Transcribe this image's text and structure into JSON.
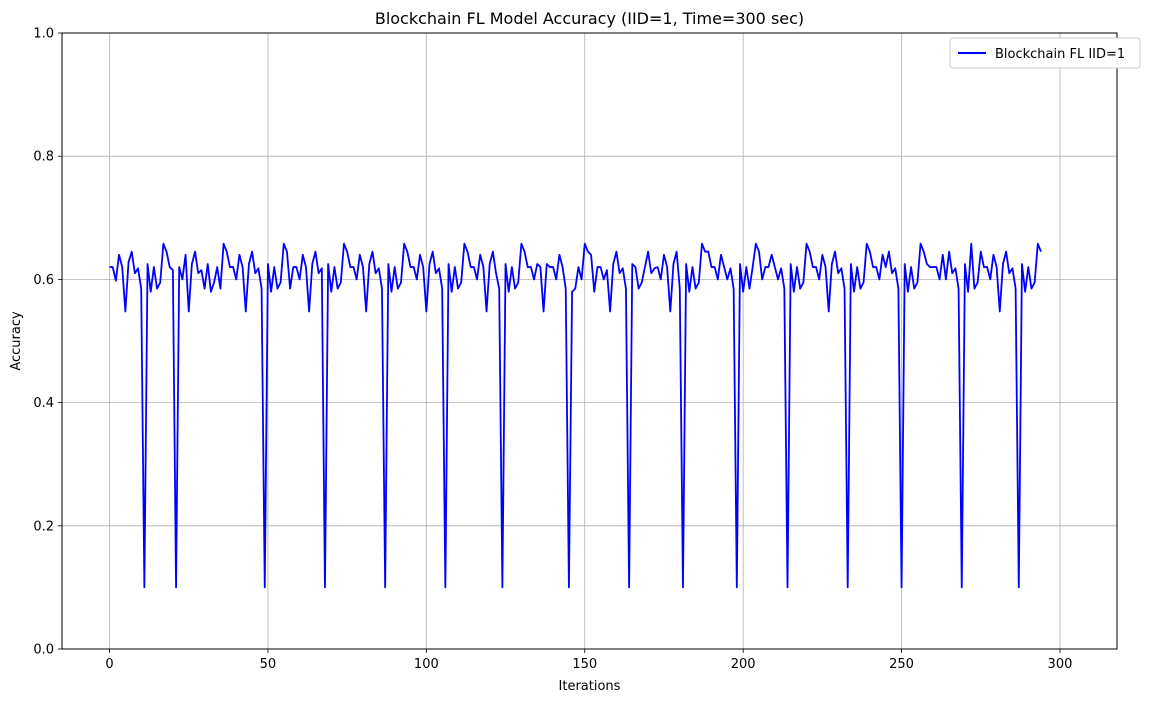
{
  "chart_data": {
    "type": "line",
    "title": "Blockchain FL Model Accuracy (IID=1, Time=300 sec)",
    "xlabel": "Iterations",
    "ylabel": "Accuracy",
    "xlim": [
      -15,
      318
    ],
    "ylim": [
      0.0,
      1.0
    ],
    "xticks": [
      0,
      50,
      100,
      150,
      200,
      250,
      300
    ],
    "yticks": [
      0.0,
      0.2,
      0.4,
      0.6,
      0.8,
      1.0
    ],
    "xtick_labels": [
      "0",
      "50",
      "100",
      "150",
      "200",
      "250",
      "300"
    ],
    "ytick_labels": [
      "0.0",
      "0.2",
      "0.4",
      "0.6",
      "0.8",
      "1.0"
    ],
    "grid": true,
    "legend_position": "top-right",
    "series": [
      {
        "name": "Blockchain FL IID=1",
        "color": "#0000ff",
        "x_start": 0,
        "x_step": 1,
        "values": [
          0.62,
          0.62,
          0.598,
          0.64,
          0.62,
          0.548,
          0.628,
          0.645,
          0.61,
          0.618,
          0.585,
          0.1,
          0.625,
          0.58,
          0.62,
          0.585,
          0.595,
          0.658,
          0.645,
          0.62,
          0.615,
          0.1,
          0.62,
          0.6,
          0.64,
          0.548,
          0.625,
          0.645,
          0.61,
          0.615,
          0.585,
          0.625,
          0.58,
          0.595,
          0.62,
          0.585,
          0.658,
          0.645,
          0.62,
          0.62,
          0.6,
          0.64,
          0.62,
          0.548,
          0.625,
          0.645,
          0.61,
          0.618,
          0.585,
          0.1,
          0.625,
          0.58,
          0.62,
          0.585,
          0.595,
          0.658,
          0.645,
          0.585,
          0.62,
          0.62,
          0.6,
          0.64,
          0.62,
          0.548,
          0.625,
          0.645,
          0.61,
          0.618,
          0.1,
          0.625,
          0.58,
          0.62,
          0.585,
          0.595,
          0.658,
          0.645,
          0.62,
          0.62,
          0.6,
          0.64,
          0.62,
          0.548,
          0.625,
          0.645,
          0.61,
          0.618,
          0.585,
          0.1,
          0.625,
          0.58,
          0.62,
          0.585,
          0.595,
          0.658,
          0.645,
          0.62,
          0.62,
          0.6,
          0.64,
          0.62,
          0.548,
          0.625,
          0.645,
          0.61,
          0.618,
          0.585,
          0.1,
          0.625,
          0.58,
          0.62,
          0.585,
          0.595,
          0.658,
          0.645,
          0.62,
          0.62,
          0.6,
          0.64,
          0.62,
          0.548,
          0.625,
          0.645,
          0.61,
          0.585,
          0.1,
          0.625,
          0.58,
          0.62,
          0.585,
          0.595,
          0.658,
          0.645,
          0.62,
          0.62,
          0.6,
          0.625,
          0.62,
          0.548,
          0.625,
          0.62,
          0.62,
          0.6,
          0.64,
          0.62,
          0.585,
          0.1,
          0.58,
          0.585,
          0.62,
          0.6,
          0.658,
          0.645,
          0.64,
          0.58,
          0.62,
          0.62,
          0.6,
          0.615,
          0.548,
          0.625,
          0.645,
          0.61,
          0.618,
          0.585,
          0.1,
          0.625,
          0.62,
          0.585,
          0.595,
          0.62,
          0.645,
          0.61,
          0.618,
          0.62,
          0.6,
          0.64,
          0.62,
          0.548,
          0.625,
          0.645,
          0.585,
          0.1,
          0.625,
          0.58,
          0.62,
          0.585,
          0.595,
          0.658,
          0.645,
          0.645,
          0.62,
          0.62,
          0.6,
          0.64,
          0.62,
          0.6,
          0.618,
          0.585,
          0.1,
          0.625,
          0.58,
          0.62,
          0.585,
          0.62,
          0.658,
          0.645,
          0.6,
          0.62,
          0.62,
          0.64,
          0.62,
          0.6,
          0.618,
          0.585,
          0.1,
          0.625,
          0.58,
          0.62,
          0.585,
          0.595,
          0.658,
          0.645,
          0.62,
          0.62,
          0.6,
          0.64,
          0.62,
          0.548,
          0.625,
          0.645,
          0.61,
          0.618,
          0.585,
          0.1,
          0.625,
          0.58,
          0.62,
          0.585,
          0.595,
          0.658,
          0.645,
          0.62,
          0.62,
          0.6,
          0.64,
          0.62,
          0.645,
          0.61,
          0.618,
          0.585,
          0.1,
          0.625,
          0.58,
          0.62,
          0.585,
          0.595,
          0.658,
          0.645,
          0.625,
          0.62,
          0.62,
          0.62,
          0.6,
          0.64,
          0.6,
          0.645,
          0.61,
          0.618,
          0.585,
          0.1,
          0.625,
          0.58,
          0.658,
          0.585,
          0.595,
          0.645,
          0.62,
          0.62,
          0.6,
          0.64,
          0.62,
          0.548,
          0.625,
          0.645,
          0.61,
          0.618,
          0.585,
          0.1,
          0.625,
          0.58,
          0.62,
          0.585,
          0.595,
          0.658,
          0.645
        ]
      }
    ]
  }
}
